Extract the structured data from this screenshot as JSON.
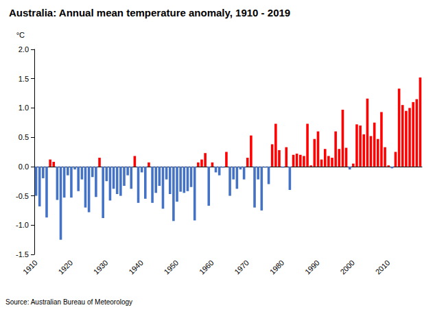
{
  "chart_data": {
    "type": "bar",
    "title": "Australia: Annual mean temperature anomaly, 1910 - 2019",
    "y_label": "°C",
    "annotation": "Source: Australian Bureau of Meteorology",
    "categories": [
      "1910",
      null,
      null,
      null,
      null,
      null,
      null,
      null,
      null,
      null,
      "1920",
      null,
      null,
      null,
      null,
      null,
      null,
      null,
      null,
      null,
      "1930",
      null,
      null,
      null,
      null,
      null,
      null,
      null,
      null,
      null,
      "1940",
      null,
      null,
      null,
      null,
      null,
      null,
      null,
      null,
      null,
      "1950",
      null,
      null,
      null,
      null,
      null,
      null,
      null,
      null,
      null,
      "1960",
      null,
      null,
      null,
      null,
      null,
      null,
      null,
      null,
      null,
      "1970",
      null,
      null,
      null,
      null,
      null,
      null,
      null,
      null,
      null,
      "1980",
      null,
      null,
      null,
      null,
      null,
      null,
      null,
      null,
      null,
      "1990",
      null,
      null,
      null,
      null,
      null,
      null,
      null,
      null,
      null,
      "2000",
      null,
      null,
      null,
      null,
      null,
      null,
      null,
      null,
      null,
      "2010",
      null,
      null,
      null,
      null,
      null,
      null,
      null,
      null,
      null
    ],
    "values": [
      -0.5,
      -0.68,
      -0.2,
      -0.87,
      0.12,
      0.08,
      -0.57,
      -1.25,
      -0.53,
      -0.15,
      -0.53,
      -0.05,
      -0.42,
      -0.22,
      -0.7,
      -0.78,
      -0.18,
      -0.52,
      0.15,
      -0.88,
      -0.25,
      -0.58,
      -0.38,
      -0.47,
      -0.5,
      -0.33,
      -0.15,
      -0.38,
      0.18,
      -0.62,
      -0.1,
      -0.55,
      0.07,
      -0.62,
      -0.45,
      -0.33,
      -0.72,
      -0.22,
      -0.47,
      -0.93,
      -0.6,
      -0.43,
      -0.45,
      -0.42,
      -0.35,
      -0.92,
      0.07,
      0.12,
      0.23,
      -0.67,
      0.07,
      -0.1,
      -0.15,
      -0.02,
      0.25,
      -0.5,
      -0.22,
      -0.38,
      -0.05,
      -0.22,
      0.15,
      0.53,
      -0.7,
      -0.22,
      -0.75,
      -0.02,
      -0.3,
      0.38,
      0.73,
      0.28,
      -0.02,
      0.33,
      -0.4,
      0.2,
      0.22,
      0.2,
      0.18,
      0.73,
      0.02,
      0.47,
      0.6,
      0.12,
      0.3,
      0.18,
      0.15,
      0.6,
      0.3,
      0.97,
      0.32,
      -0.05,
      0.05,
      0.72,
      0.7,
      0.55,
      1.16,
      0.52,
      0.75,
      0.47,
      0.93,
      0.33,
      0.02,
      -0.03,
      0.25,
      1.33,
      1.05,
      0.95,
      1.0,
      1.1,
      1.15,
      1.52
    ],
    "colors": [
      "#4472c4",
      "#4472c4",
      "#4472c4",
      "#4472c4",
      "#ff0000",
      "#ff0000",
      "#4472c4",
      "#4472c4",
      "#4472c4",
      "#4472c4",
      "#4472c4",
      "#4472c4",
      "#4472c4",
      "#4472c4",
      "#4472c4",
      "#4472c4",
      "#4472c4",
      "#4472c4",
      "#ff0000",
      "#4472c4",
      "#4472c4",
      "#4472c4",
      "#4472c4",
      "#4472c4",
      "#4472c4",
      "#4472c4",
      "#4472c4",
      "#4472c4",
      "#ff0000",
      "#4472c4",
      "#4472c4",
      "#4472c4",
      "#ff0000",
      "#4472c4",
      "#4472c4",
      "#4472c4",
      "#4472c4",
      "#4472c4",
      "#4472c4",
      "#4472c4",
      "#4472c4",
      "#4472c4",
      "#4472c4",
      "#4472c4",
      "#4472c4",
      "#4472c4",
      "#ff0000",
      "#ff0000",
      "#ff0000",
      "#4472c4",
      "#ff0000",
      "#4472c4",
      "#4472c4",
      "#4472c4",
      "#ff0000",
      "#4472c4",
      "#4472c4",
      "#4472c4",
      "#4472c4",
      "#4472c4",
      "#ff0000",
      "#ff0000",
      "#4472c4",
      "#4472c4",
      "#4472c4",
      "#4472c4",
      "#4472c4",
      "#ff0000",
      "#ff0000",
      "#ff0000",
      "#4472c4",
      "#ff0000",
      "#4472c4",
      "#ff0000",
      "#ff0000",
      "#ff0000",
      "#ff0000",
      "#ff0000",
      "#ff0000",
      "#ff0000",
      "#ff0000",
      "#ff0000",
      "#ff0000",
      "#ff0000",
      "#ff0000",
      "#ff0000",
      "#ff0000",
      "#ff0000",
      "#ff0000",
      "#4472c4",
      "#ff0000",
      "#ff0000",
      "#ff0000",
      "#ff0000",
      "#ff0000",
      "#ff0000",
      "#ff0000",
      "#ff0000",
      "#ff0000",
      "#ff0000",
      "#ff0000",
      "#4472c4",
      "#ff0000",
      "#ff0000",
      "#ff0000",
      "#ff0000",
      "#ff0000",
      "#ff0000",
      "#ff0000",
      "#ff0000"
    ],
    "ylim": [
      -1.5,
      2.0
    ],
    "yticks": [
      -1.5,
      {
        "value": -1.0,
        "label": "-1.0"
      },
      -0.5,
      {
        "value": 0.0,
        "label": "0.0"
      },
      0.5,
      {
        "value": 1.0,
        "label": "1.0"
      },
      1.5,
      {
        "value": 2.0,
        "label": "2.0"
      }
    ],
    "grid": false
  }
}
